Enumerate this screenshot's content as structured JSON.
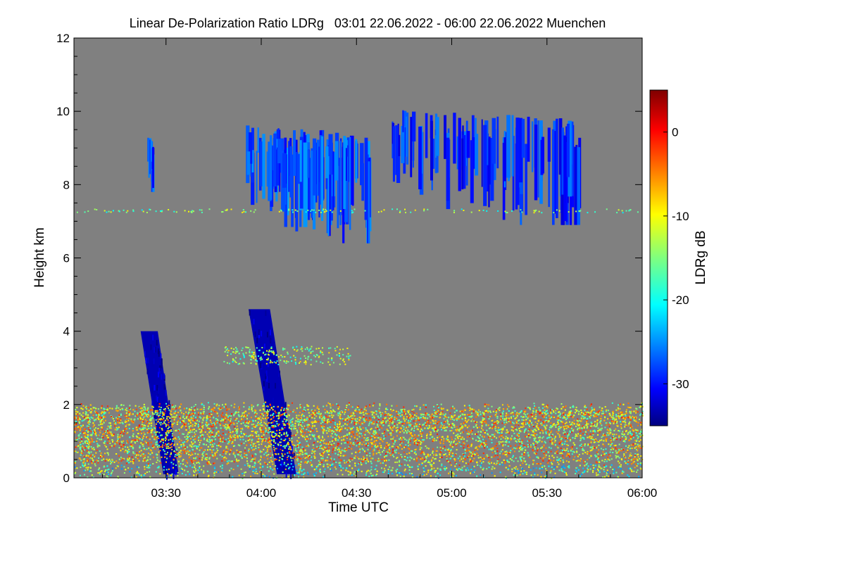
{
  "chart_data": {
    "type": "heatmap",
    "title": "Linear De-Polarization Ratio LDRg   03:01 22.06.2022 - 06:00 22.06.2022 Muenchen",
    "xlabel": "Time UTC",
    "ylabel": "Height km",
    "colorbar_label": "LDRg dB",
    "xlim_minutes": [
      181,
      360
    ],
    "ylim_km": [
      0,
      12
    ],
    "x_ticks": [
      {
        "label": "03:30",
        "minutes": 210
      },
      {
        "label": "04:00",
        "minutes": 240
      },
      {
        "label": "04:30",
        "minutes": 270
      },
      {
        "label": "05:00",
        "minutes": 300
      },
      {
        "label": "05:30",
        "minutes": 330
      },
      {
        "label": "06:00",
        "minutes": 360
      }
    ],
    "y_ticks": [
      0,
      2,
      4,
      6,
      8,
      10,
      12
    ],
    "colorbar_range_db": [
      -35,
      5
    ],
    "colorbar_ticks": [
      0,
      -10,
      -20,
      -30
    ],
    "background_color": "#808080",
    "features": [
      {
        "name": "cirrus-cloud-1",
        "t_start": 235,
        "t_end": 274,
        "h_low": 6.4,
        "h_high": 9.7,
        "ldr_db": -27
      },
      {
        "name": "cirrus-cloud-2",
        "t_start": 281,
        "t_end": 341,
        "h_low": 6.9,
        "h_high": 10.1,
        "ldr_db": -28
      },
      {
        "name": "cirrus-streak-small",
        "t_start": 204,
        "t_end": 206,
        "h_low": 7.8,
        "h_high": 9.3,
        "ldr_db": -27
      },
      {
        "name": "rain-shaft-1",
        "t_start": 202,
        "t_end": 214,
        "h_low": 0.1,
        "h_high": 4.0,
        "ldr_db": -33
      },
      {
        "name": "rain-shaft-2",
        "t_start": 236,
        "t_end": 251,
        "h_low": 0.1,
        "h_high": 4.6,
        "ldr_db": -33
      },
      {
        "name": "boundary-layer-aerosol",
        "t_start": 181,
        "t_end": 360,
        "h_low": 0.0,
        "h_high": 2.1,
        "ldr_db": -12
      },
      {
        "name": "aerosol-layer-3km",
        "t_start": 228,
        "t_end": 268,
        "h_low": 3.1,
        "h_high": 3.6,
        "ldr_db": -14
      },
      {
        "name": "aerosol-line-7.3km",
        "t_start": 181,
        "t_end": 360,
        "h_low": 7.25,
        "h_high": 7.35,
        "ldr_db": -15
      }
    ]
  }
}
